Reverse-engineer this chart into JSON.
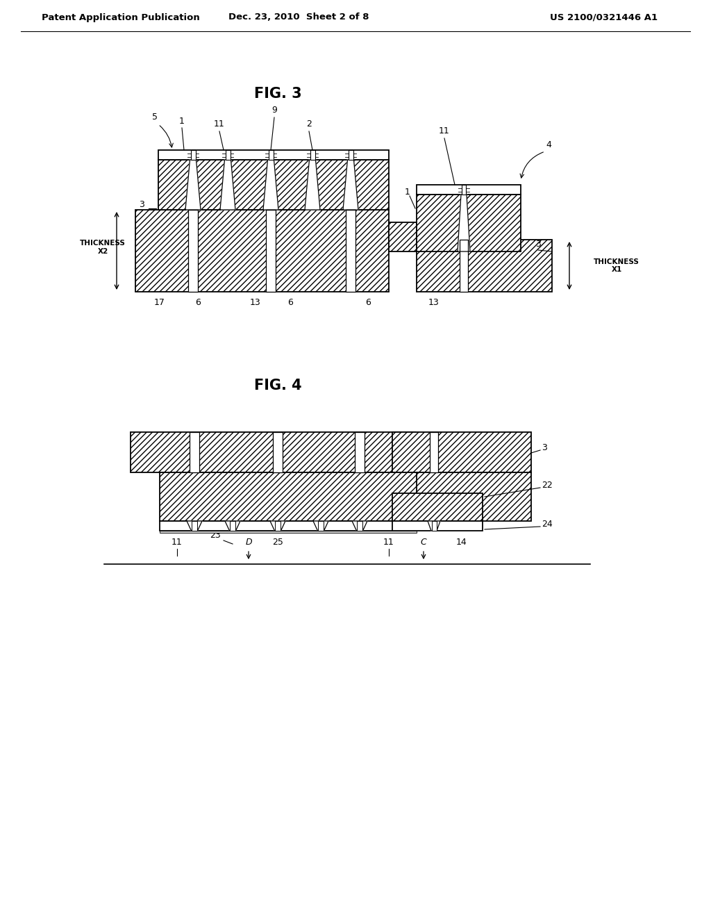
{
  "bg_color": "#ffffff",
  "header_left": "Patent Application Publication",
  "header_mid": "Dec. 23, 2010  Sheet 2 of 8",
  "header_right": "US 2100/0321446 A1",
  "fig3_title": "FIG. 3",
  "fig4_title": "FIG. 4",
  "line_color": "#000000"
}
